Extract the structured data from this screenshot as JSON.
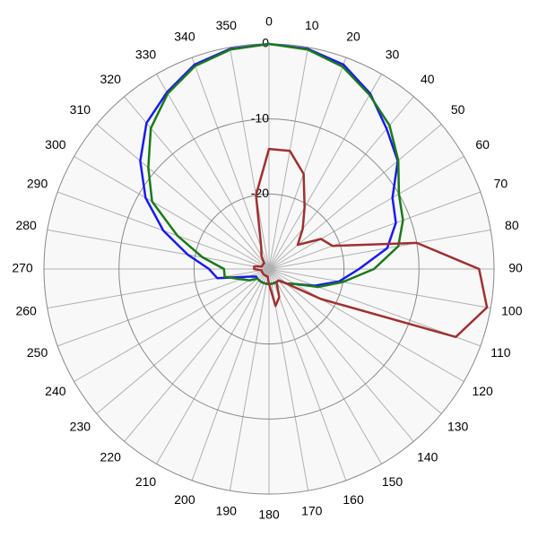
{
  "chart_data": {
    "type": "polar",
    "angles": [
      0,
      10,
      20,
      30,
      40,
      50,
      60,
      70,
      80,
      90,
      100,
      110,
      120,
      130,
      140,
      150,
      160,
      170,
      180,
      190,
      200,
      210,
      220,
      230,
      240,
      250,
      260,
      270,
      280,
      290,
      300,
      310,
      320,
      330,
      340,
      350
    ],
    "rlim": [
      -30,
      0
    ],
    "rticks": [
      -20,
      -10,
      0
    ],
    "grid": true,
    "series": [
      {
        "color": "#1a1aee",
        "values": [
          0,
          -0.2,
          -1,
          -3,
          -5.6,
          -7.6,
          -11,
          -12,
          -14,
          -18,
          -20.5,
          -23.5,
          -26,
          -27,
          -28,
          -28,
          -28,
          -28,
          -28,
          -28,
          -28,
          -28,
          -28,
          -28,
          -28,
          -27,
          -23,
          -22,
          -19,
          -15,
          -11,
          -7.6,
          -4.6,
          -2.8,
          -1,
          -0.2
        ]
      },
      {
        "color": "#1a7a1a",
        "values": [
          0,
          -0.3,
          -1.3,
          -3.2,
          -5,
          -7.5,
          -10,
          -11,
          -12.5,
          -16,
          -20,
          -23,
          -26,
          -27,
          -28,
          -28,
          -28,
          -28,
          -28,
          -28,
          -28,
          -28,
          -28,
          -28,
          -27,
          -26,
          -24,
          -24,
          -21,
          -17,
          -12,
          -9,
          -5.5,
          -3,
          -1.2,
          -0.3
        ]
      },
      {
        "color": "#a03030",
        "values": [
          -14,
          -14,
          -16.5,
          -20.5,
          -23,
          -25,
          -22,
          -21,
          -10,
          -2,
          -0.5,
          -3.5,
          -22,
          -27,
          -28,
          -28,
          -26,
          -25,
          -28,
          -29,
          -29,
          -29,
          -29,
          -29,
          -29,
          -29,
          -29,
          -28,
          -28,
          -29,
          -29,
          -29,
          -29,
          -28,
          -27,
          -20
        ]
      }
    ]
  }
}
